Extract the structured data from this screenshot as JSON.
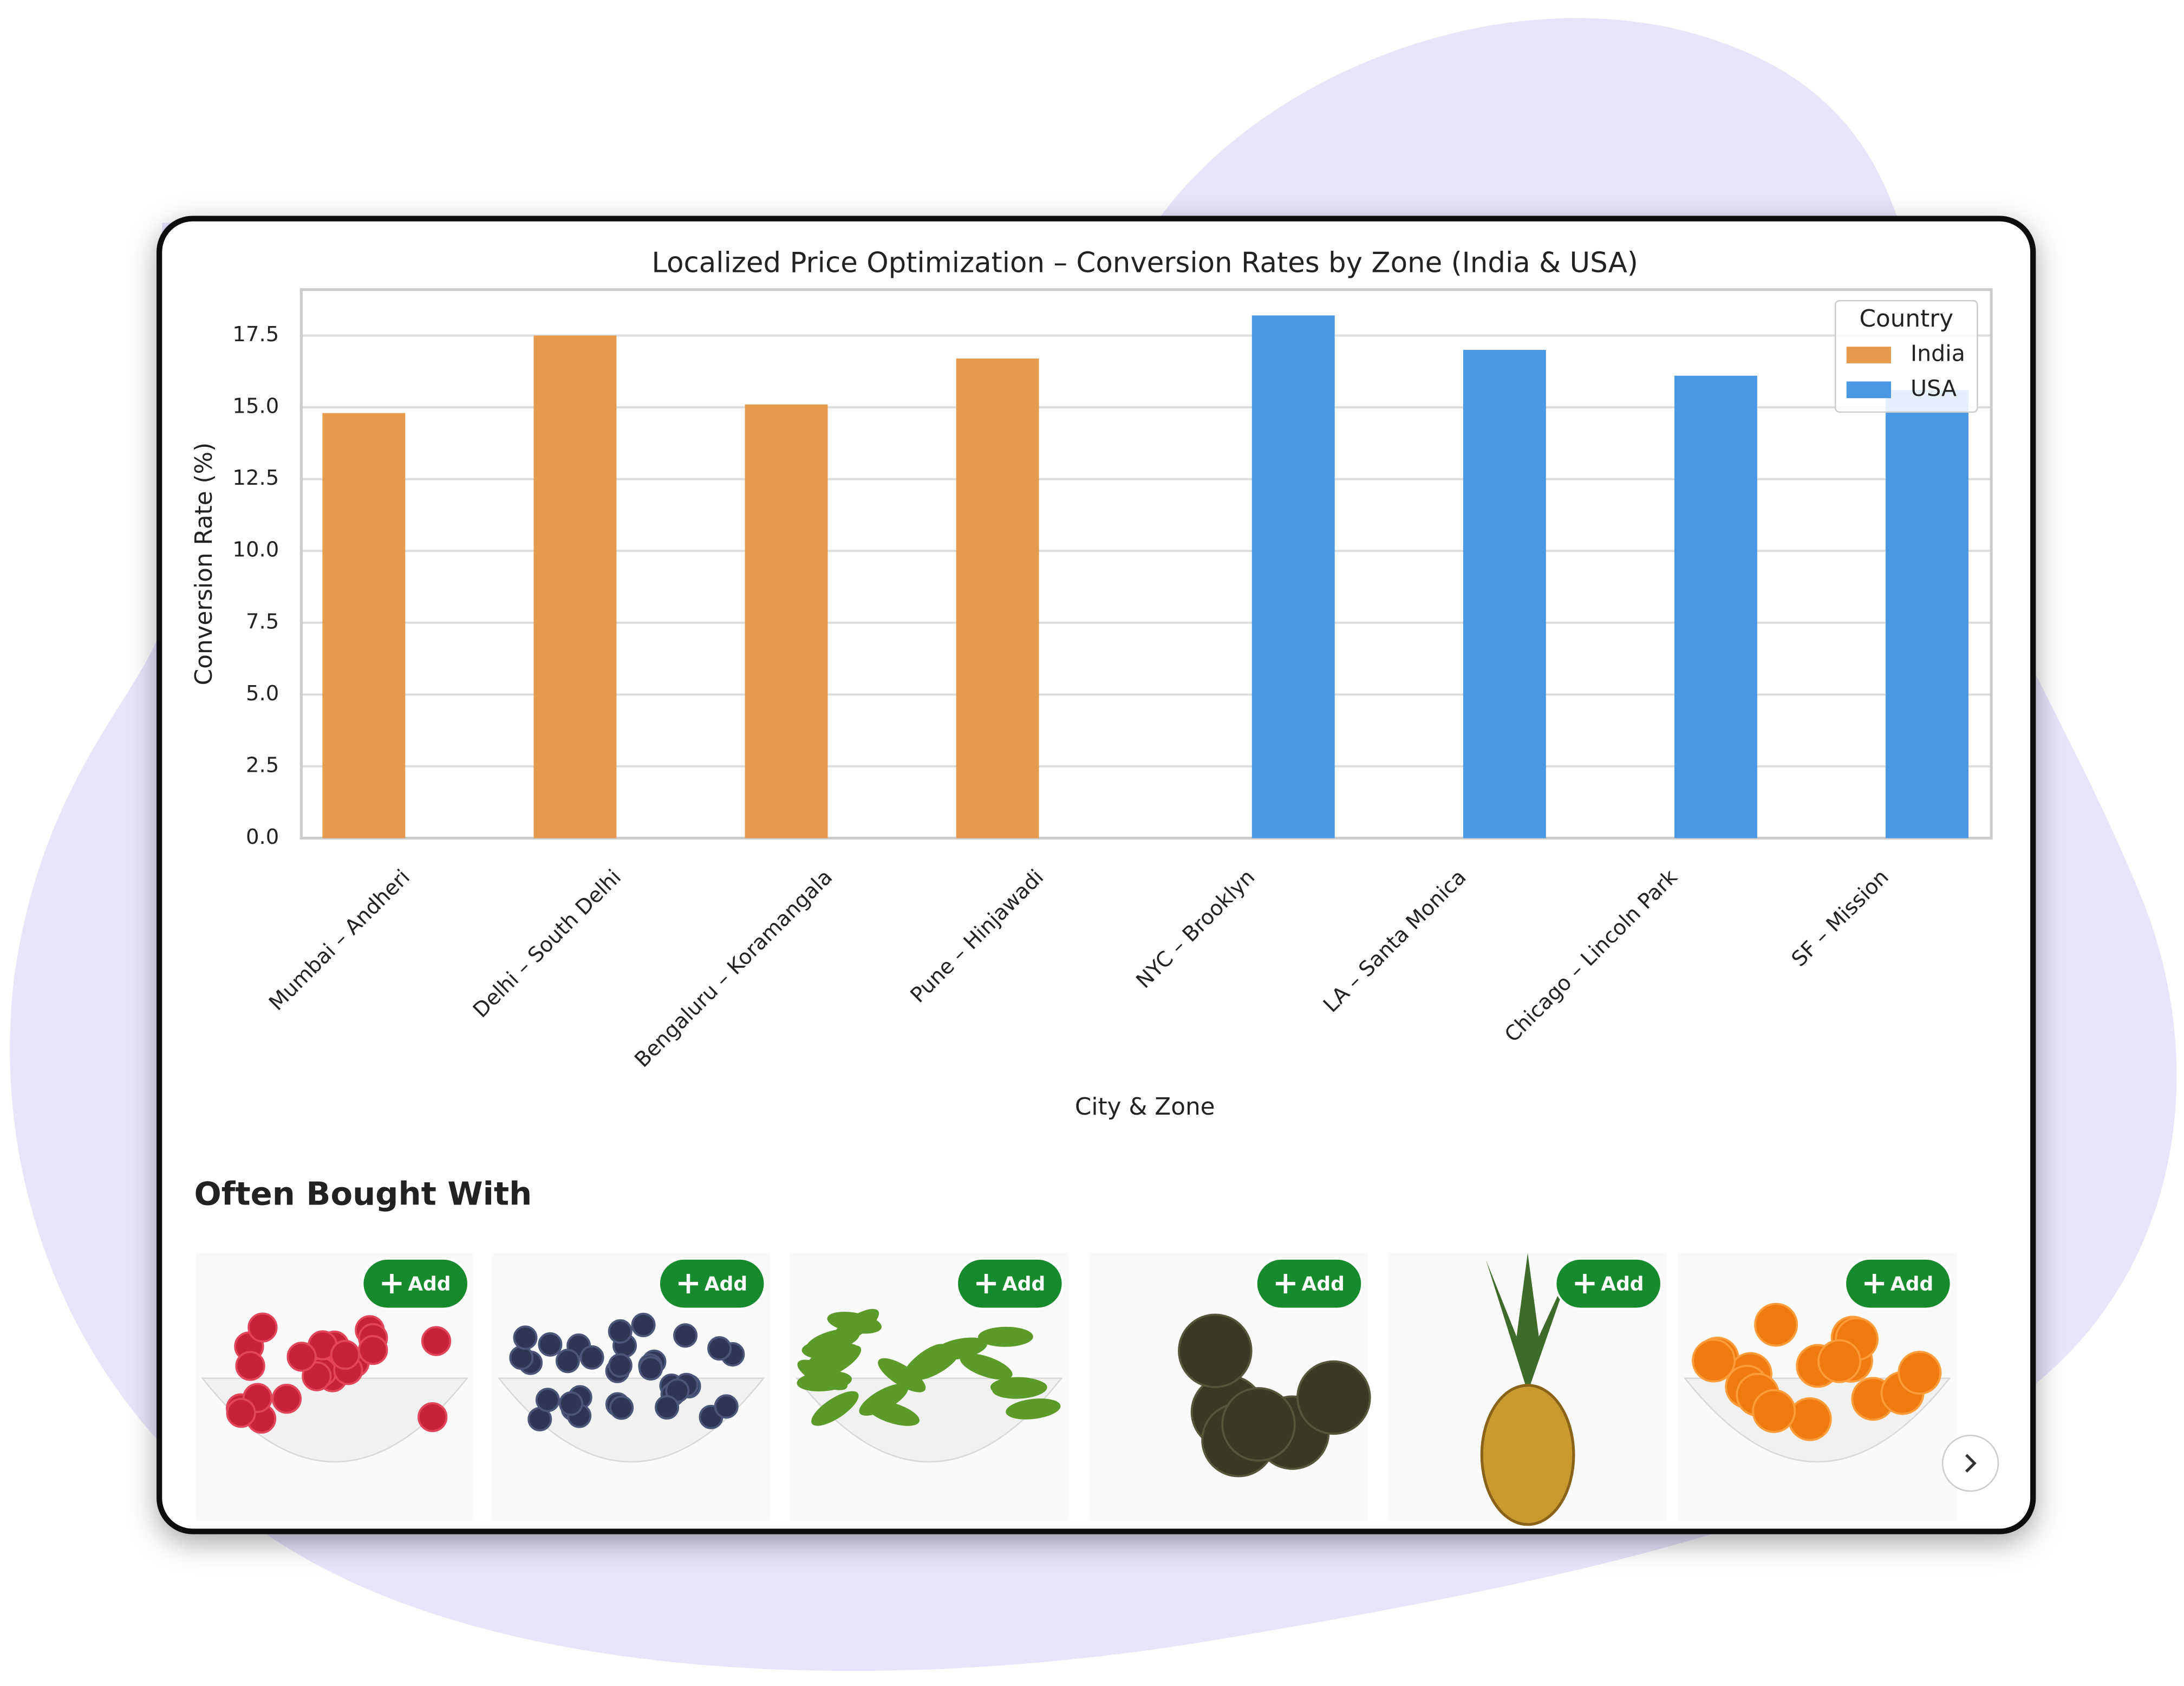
{
  "chart_data": {
    "type": "bar",
    "title": "Localized Price Optimization – Conversion Rates by Zone (India & USA)",
    "x_label": "City & Zone",
    "y_label": "Conversion Rate (%)",
    "categories": [
      "Mumbai – Andheri",
      "Delhi – South Delhi",
      "Bengaluru – Koramangala",
      "Pune – Hinjawadi",
      "NYC – Brooklyn",
      "LA – Santa Monica",
      "Chicago – Lincoln Park",
      "SF – Mission"
    ],
    "series": [
      {
        "name": "India",
        "color": "#e69a4c",
        "values": [
          14.8,
          17.5,
          15.1,
          16.7,
          null,
          null,
          null,
          null
        ]
      },
      {
        "name": "USA",
        "color": "#4a98e4",
        "values": [
          null,
          null,
          null,
          null,
          18.2,
          17.0,
          16.1,
          15.6
        ]
      }
    ],
    "legend_title": "Country",
    "legend": "upper right",
    "ylim": [
      0,
      19.1
    ],
    "yticks": [
      {
        "value": 0,
        "label": "0.0"
      },
      {
        "value": 2.5,
        "label": "2.5"
      },
      {
        "value": 5,
        "label": "5.0"
      },
      {
        "value": 7.5,
        "label": "7.5"
      },
      {
        "value": 10,
        "label": "10.0"
      },
      {
        "value": 12.5,
        "label": "12.5"
      },
      {
        "value": 15,
        "label": "15.0"
      },
      {
        "value": 17.5,
        "label": "17.5"
      }
    ],
    "grid": true
  },
  "often_bought_with": {
    "title": "Often Bought With",
    "buttons": [
      "Add",
      "Add",
      "Add",
      "Add",
      "Add",
      "Add"
    ]
  }
}
